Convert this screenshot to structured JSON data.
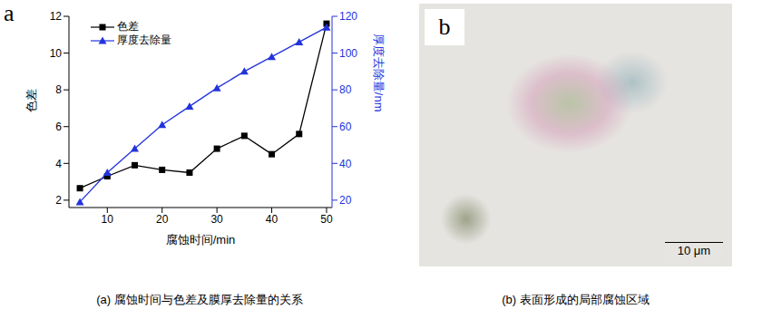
{
  "chart_data": {
    "type": "line",
    "panel": "a",
    "caption": "(a) 腐蚀时间与色差及膜厚去除量的关系",
    "x_label": "腐蚀时间/min",
    "y_label": "色差",
    "y2_label": "厚度去除量/nm",
    "x": [
      5,
      10,
      15,
      20,
      25,
      30,
      35,
      40,
      45,
      50
    ],
    "xlim": [
      3,
      51
    ],
    "xticks": [
      10,
      20,
      30,
      40,
      50
    ],
    "ylim": [
      1.6,
      12
    ],
    "yticks": [
      2,
      4,
      6,
      8,
      10,
      12
    ],
    "y2lim": [
      16,
      120
    ],
    "y2ticks": [
      20,
      40,
      60,
      80,
      100,
      120
    ],
    "legend": "upper left",
    "series": [
      {
        "name": "色差",
        "color": "#000000",
        "marker": "square",
        "values": [
          2.65,
          3.3,
          3.9,
          3.65,
          3.5,
          4.8,
          5.5,
          4.5,
          5.6,
          11.6
        ]
      },
      {
        "name": "厚度去除量",
        "color": "#2233dd",
        "marker": "triangle",
        "axis": "y2",
        "values": [
          19,
          35,
          48,
          61,
          71,
          81,
          90,
          98,
          106,
          114
        ]
      }
    ]
  },
  "image_panel": {
    "panel": "b",
    "caption": "(b) 表面形成的局部腐蚀区域",
    "scale_bar": "10 μm"
  }
}
